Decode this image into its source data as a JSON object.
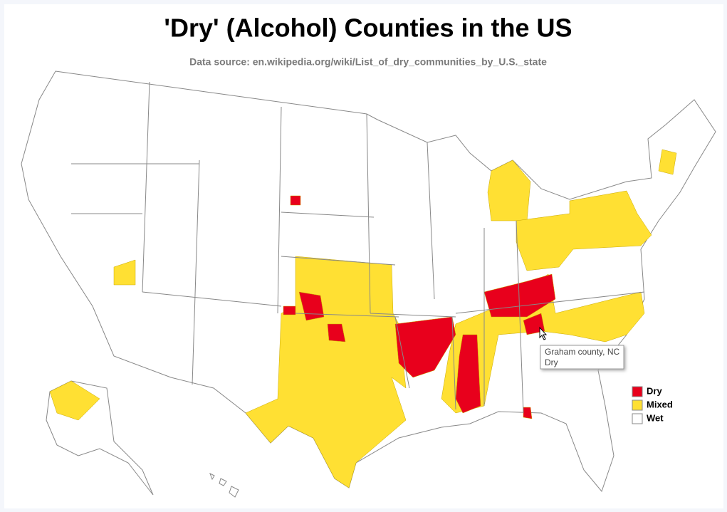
{
  "title": "'Dry' (Alcohol) Counties in the US",
  "subtitle": "Data source: en.wikipedia.org/wiki/List_of_dry_communities_by_U.S._state",
  "legend": [
    {
      "label": "Dry",
      "color": "#e8001c"
    },
    {
      "label": "Mixed",
      "color": "#ffe033"
    },
    {
      "label": "Wet",
      "color": "#ffffff"
    }
  ],
  "tooltip": {
    "county": "Graham county, NC",
    "status": "Dry"
  }
}
